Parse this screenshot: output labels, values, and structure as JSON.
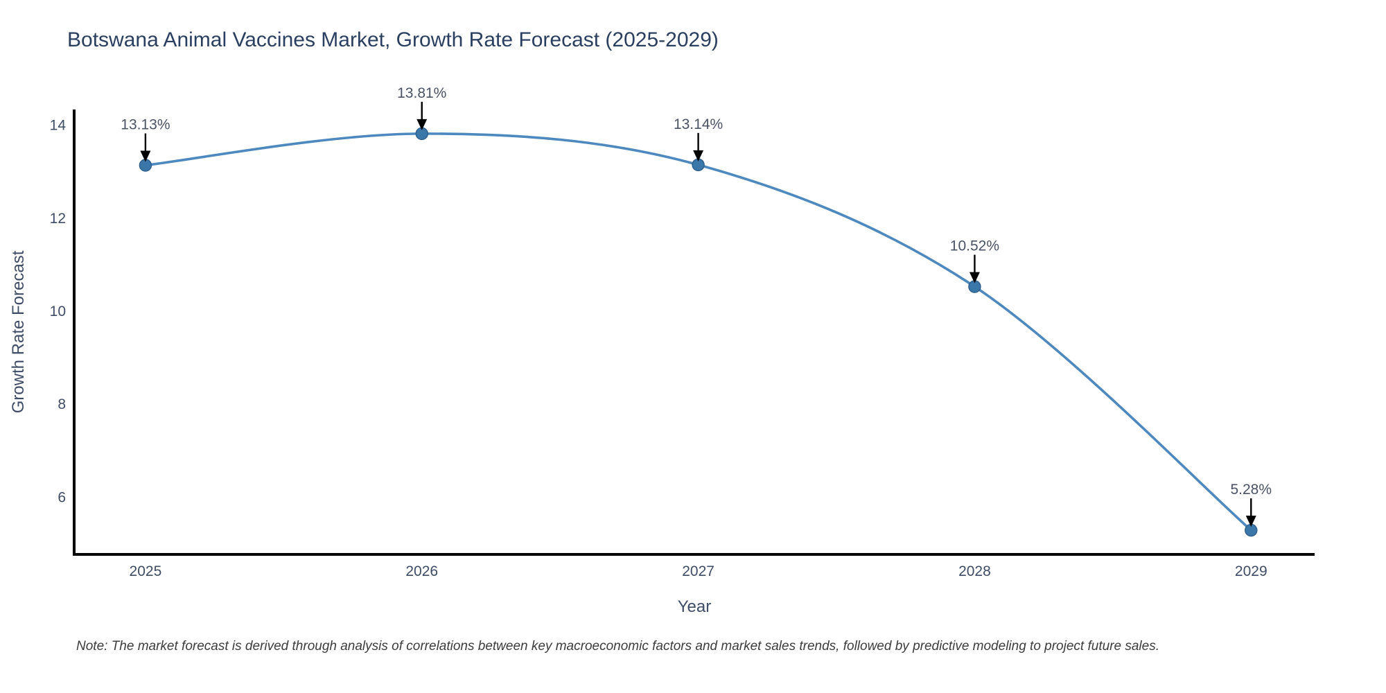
{
  "note": "Note: The market forecast is derived through analysis of correlations between key macroeconomic factors and market sales trends, followed by predictive modeling to project future sales.",
  "chart_data": {
    "type": "line",
    "title": "Botswana Animal Vaccines Market, Growth Rate Forecast (2025-2029)",
    "xlabel": "Year",
    "ylabel": "Growth Rate Forecast",
    "x": [
      2025,
      2026,
      2027,
      2028,
      2029
    ],
    "values": [
      13.13,
      13.81,
      13.14,
      10.52,
      5.28
    ],
    "point_labels": [
      "13.13%",
      "13.81%",
      "13.14%",
      "10.52%",
      "5.28%"
    ],
    "xticks": [
      "2025",
      "2026",
      "2027",
      "2028",
      "2029"
    ],
    "yticks": [
      6,
      8,
      10,
      12,
      14
    ],
    "xlim": [
      2024.742,
      2029.23
    ],
    "ylim": [
      4.76,
      14.33
    ],
    "grid": false,
    "legend": "none",
    "line_shape": "spline",
    "annotations": "value labels with downward arrows above each point",
    "colors": {
      "line": "#4d89bf",
      "marker": "#3c77aa",
      "marker_edge": "#2e608f",
      "axis": "#000000",
      "arrow": "#000000",
      "title_text": "#2a3f5f",
      "tick_text": "#3e4c66",
      "annotation_text": "#4a5263",
      "note_text": "#3c3c3c"
    }
  }
}
